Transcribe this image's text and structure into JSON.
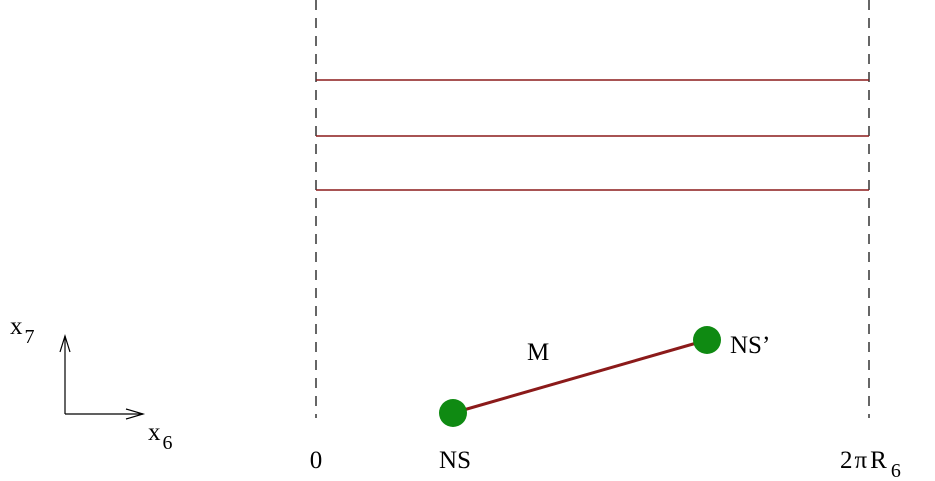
{
  "axes": {
    "vertical": {
      "base": "x",
      "sub": "7"
    },
    "horizontal": {
      "base": "x",
      "sub": "6"
    }
  },
  "boundaries": {
    "left_label": "0",
    "right_label_prefix": "2",
    "right_label_pi": "π",
    "right_label_R": "R",
    "right_label_sub": "6"
  },
  "brane": {
    "label": "M",
    "start_label": "NS",
    "end_label": "NS’"
  },
  "colors": {
    "strip_line": "#8b1a1a",
    "brane_line": "#8b1a1a",
    "endpoint": "#0f8a12",
    "boundary": "#000000",
    "text": "#000000"
  },
  "strip_line_count": 3
}
